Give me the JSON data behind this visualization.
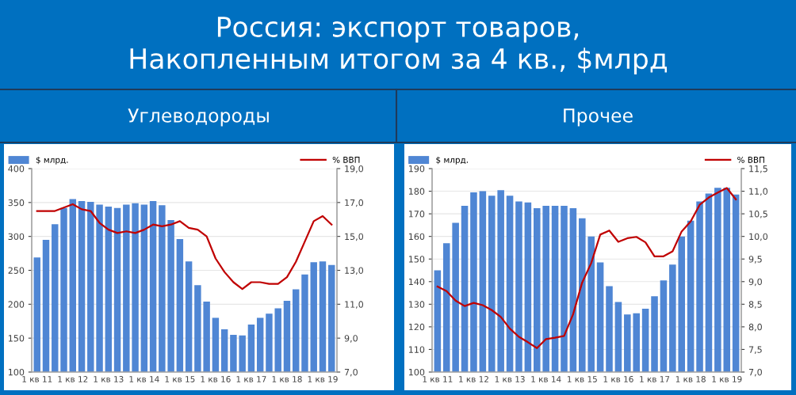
{
  "chart_data": [
    {
      "type": "bar",
      "title": "Россия: экспорт товаров,\nНакопленным итогом за 4 кв., $млрд",
      "subtitle": "Углеводороды",
      "categories": [
        "1 кв 11",
        null,
        null,
        null,
        "1 кв 12",
        null,
        null,
        null,
        "1 кв 13",
        null,
        null,
        null,
        "1 кв 14",
        null,
        null,
        null,
        "1 кв 15",
        null,
        null,
        null,
        "1 кв 16",
        null,
        null,
        null,
        "1 кв 17",
        null,
        null,
        null,
        "1 кв 18",
        null,
        null,
        null,
        "1 кв 19",
        null
      ],
      "series": [
        {
          "name": "$ млрд.",
          "color": "#4f86d4",
          "values": [
            269,
            295,
            318,
            342,
            355,
            352,
            351,
            347,
            344,
            342,
            347,
            349,
            347,
            352,
            346,
            324,
            296,
            263,
            228,
            204,
            180,
            163,
            155,
            154,
            170,
            180,
            186,
            194,
            205,
            222,
            244,
            262,
            263,
            258
          ]
        },
        {
          "name": "% ВВП",
          "type": "line",
          "axis": "y2",
          "color": "#c00000",
          "values": [
            16.5,
            16.5,
            16.5,
            16.7,
            16.9,
            16.6,
            16.5,
            15.8,
            15.4,
            15.2,
            15.3,
            15.2,
            15.4,
            15.7,
            15.6,
            15.7,
            15.9,
            15.5,
            15.4,
            15.0,
            13.7,
            12.9,
            12.3,
            11.9,
            12.3,
            12.3,
            12.2,
            12.2,
            12.6,
            13.5,
            14.7,
            15.9,
            16.2,
            15.7
          ]
        }
      ],
      "ylim": [
        100,
        400
      ],
      "yticks": [
        100,
        150,
        200,
        250,
        300,
        350,
        400
      ],
      "y2lim": [
        7,
        19
      ],
      "y2ticks": [
        {
          "value": 7,
          "label": "7,0"
        },
        {
          "value": 9,
          "label": "9,0"
        },
        {
          "value": 11,
          "label": "11,0"
        },
        {
          "value": 13,
          "label": "13,0"
        },
        {
          "value": 15,
          "label": "15,0"
        },
        {
          "value": 17,
          "label": "17,0"
        },
        {
          "value": 19,
          "label": "19,0"
        }
      ],
      "grid": "y",
      "legend": "top"
    },
    {
      "type": "bar",
      "subtitle": "Прочее",
      "categories": [
        "1 кв 11",
        null,
        null,
        null,
        "1 кв 12",
        null,
        null,
        null,
        "1 кв 13",
        null,
        null,
        null,
        "1 кв 14",
        null,
        null,
        null,
        "1 кв 15",
        null,
        null,
        null,
        "1 кв 16",
        null,
        null,
        null,
        "1 кв 17",
        null,
        null,
        null,
        "1 кв 18",
        null,
        null,
        null,
        "1 кв 19",
        null
      ],
      "series": [
        {
          "name": "$ млрд.",
          "color": "#4f86d4",
          "values": [
            145,
            157,
            166,
            173.5,
            179.5,
            180,
            178,
            180.5,
            178,
            175.5,
            175,
            172.5,
            173.5,
            173.5,
            173.5,
            172.5,
            168,
            160,
            148.5,
            138,
            131,
            125.5,
            126,
            128,
            133.5,
            140.5,
            147.5,
            160,
            167,
            175.5,
            179,
            181.5,
            181.5,
            178.5
          ]
        },
        {
          "name": "% ВВП",
          "type": "line",
          "axis": "y2",
          "color": "#c00000",
          "values": [
            8.89,
            8.79,
            8.58,
            8.46,
            8.53,
            8.48,
            8.37,
            8.22,
            7.96,
            7.78,
            7.66,
            7.53,
            7.73,
            7.76,
            7.8,
            8.28,
            8.98,
            9.41,
            10.04,
            10.13,
            9.88,
            9.96,
            9.99,
            9.87,
            9.56,
            9.56,
            9.67,
            10.11,
            10.33,
            10.7,
            10.86,
            10.97,
            11.07,
            10.82
          ]
        }
      ],
      "ylim": [
        100,
        190
      ],
      "yticks": [
        100,
        110,
        120,
        130,
        140,
        150,
        160,
        170,
        180,
        190
      ],
      "y2lim": [
        7,
        11.5
      ],
      "y2ticks": [
        {
          "value": 7,
          "label": "7,0"
        },
        {
          "value": 7.5,
          "label": "7,5"
        },
        {
          "value": 8,
          "label": "8,0"
        },
        {
          "value": 8.5,
          "label": "8,5"
        },
        {
          "value": 9,
          "label": "9,0"
        },
        {
          "value": 9.5,
          "label": "9,5"
        },
        {
          "value": 10,
          "label": "10,0"
        },
        {
          "value": 10.5,
          "label": "10,5"
        },
        {
          "value": 11,
          "label": "11,0"
        },
        {
          "value": 11.5,
          "label": "11,5"
        }
      ],
      "grid": "y",
      "legend": "top"
    }
  ]
}
